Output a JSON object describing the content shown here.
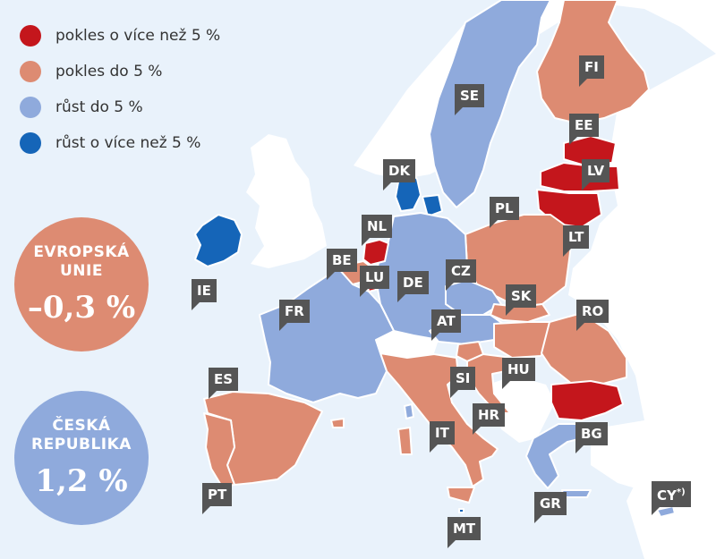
{
  "legend": {
    "items": [
      {
        "label": "pokles o více než 5 %",
        "color": "#c4161c"
      },
      {
        "label": "pokles do 5 %",
        "color": "#dd8b72"
      },
      {
        "label": "růst do 5 %",
        "color": "#8faadc"
      },
      {
        "label": "růst o více než 5 %",
        "color": "#1565b8"
      }
    ]
  },
  "summary": {
    "eu": {
      "title_line1": "EVROPSKÁ",
      "title_line2": "UNIE",
      "value": "–0,3 %",
      "color": "#dd8b72"
    },
    "cz": {
      "title_line1": "ČESKÁ",
      "title_line2": "REPUBLIKA",
      "value": "1,2 %",
      "color": "#8faadc"
    }
  },
  "colors": {
    "sea": "#e9f2fb",
    "non_eu_land": "#ffffff",
    "border": "#ffffff",
    "label_bg": "#555555"
  },
  "countries": {
    "FI": "FI",
    "SE": "SE",
    "EE": "EE",
    "LV": "LV",
    "LT": "LT",
    "DK": "DK",
    "PL": "PL",
    "NL": "NL",
    "BE": "BE",
    "LU": "LU",
    "DE": "DE",
    "CZ": "CZ",
    "IE": "IE",
    "FR": "FR",
    "SK": "SK",
    "AT": "AT",
    "RO": "RO",
    "SI": "SI",
    "HU": "HU",
    "ES": "ES",
    "HR": "HR",
    "IT": "IT",
    "BG": "BG",
    "PT": "PT",
    "GR": "GR",
    "MT": "MT",
    "CY": "CY",
    "CY_note": "*)"
  }
}
